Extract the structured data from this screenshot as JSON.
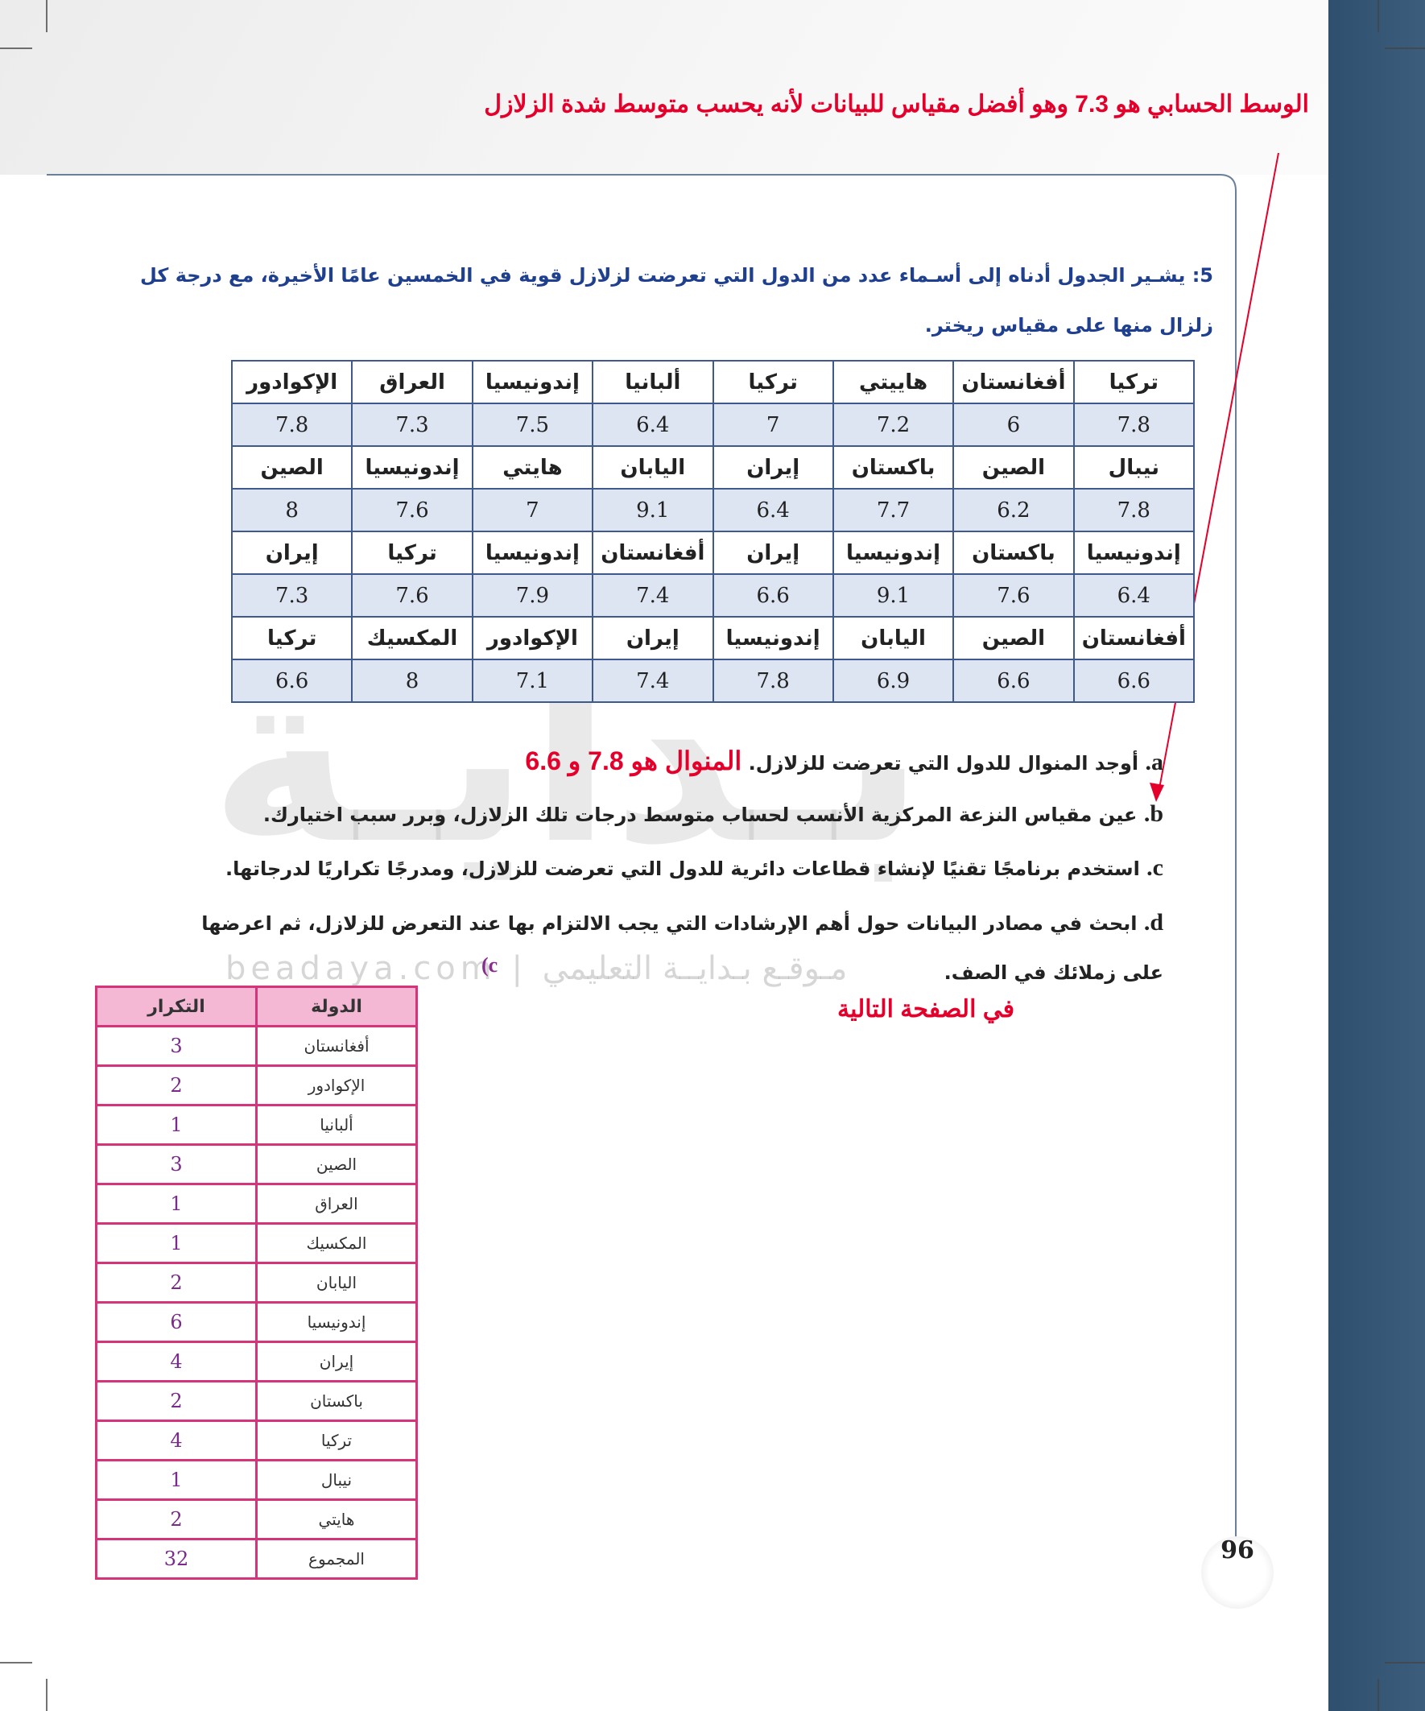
{
  "annotation_top": "الوسط الحسابي هو 7.3 وهو أفضل مقياس للبيانات لأنه يحسب متوسط شدة الزلازل",
  "question": {
    "number": "5:",
    "lines": [
      "يشـير الجدول أدناه إلى أسـماء عدد من الدول التي تعرضت لزلازل قوية في الخمسين عامًا الأخيرة، مع درجة كل",
      "زلزال منها على مقياس ريختر."
    ]
  },
  "table": {
    "rows": [
      [
        "تركيا",
        "أفغانستان",
        "هاييتي",
        "تركيا",
        "ألبانيا",
        "إندونيسيا",
        "العراق",
        "الإكوادور"
      ],
      [
        7.8,
        6,
        7.2,
        7,
        6.4,
        7.5,
        7.3,
        7.8
      ],
      [
        "نيبال",
        "الصين",
        "باكستان",
        "إيران",
        "اليابان",
        "هايتي",
        "إندونيسيا",
        "الصين"
      ],
      [
        7.8,
        6.2,
        7.7,
        6.4,
        9.1,
        7,
        7.6,
        8
      ],
      [
        "إندونيسيا",
        "باكستان",
        "إندونيسيا",
        "إيران",
        "أفغانستان",
        "إندونيسيا",
        "تركيا",
        "إيران"
      ],
      [
        6.4,
        7.6,
        9.1,
        6.6,
        7.4,
        7.9,
        7.6,
        7.3
      ],
      [
        "أفغانستان",
        "الصين",
        "اليابان",
        "إندونيسيا",
        "إيران",
        "الإكوادور",
        "المكسيك",
        "تركيا"
      ],
      [
        6.6,
        6.6,
        6.9,
        7.8,
        7.4,
        7.1,
        8,
        6.6
      ]
    ]
  },
  "items": [
    {
      "letter": "a.",
      "lines": [
        "أوجد المنوال للدول التي تعرضت للزلازل."
      ]
    },
    {
      "letter": "b.",
      "lines": [
        "عين مقياس النزعة المركزية الأنسب لحساب متوسط درجات تلك الزلازل، وبرر سبب اختيارك."
      ]
    },
    {
      "letter": "c.",
      "lines": [
        "استخدم برنامجًا تقنيًا لإنشاء قطاعات دائرية للدول التي تعرضت للزلازل، ومدرجًا تكراريًا لدرجاتها."
      ]
    },
    {
      "letter": "d.",
      "lines": [
        "ابحث في مصادر البيانات حول أهم الإرشادات التي يجب الالتزام بها عند التعرض للزلازل، ثم اعرضها",
        "على زملائك في الصف."
      ]
    }
  ],
  "answer_a": "المنوال هو 7.8 و 6.6",
  "part_c_label": "(c",
  "next_page_note": "في الصفحة التالية",
  "frequency_table": {
    "header": [
      "الدولة",
      "التكرار"
    ],
    "rows": [
      [
        "أفغانستان",
        3
      ],
      [
        "الإكوادور",
        2
      ],
      [
        "ألبانيا",
        1
      ],
      [
        "الصين",
        3
      ],
      [
        "العراق",
        1
      ],
      [
        "المكسيك",
        1
      ],
      [
        "اليابان",
        2
      ],
      [
        "إندونيسيا",
        6
      ],
      [
        "إيران",
        4
      ],
      [
        "باكستان",
        2
      ],
      [
        "تركيا",
        4
      ],
      [
        "نيبال",
        1
      ],
      [
        "هايتي",
        2
      ],
      [
        "المجموع",
        32
      ]
    ]
  },
  "page_number": 96,
  "watermark": {
    "logo": "بـدايـة",
    "caption": "beadaya.com | مـوقـع بـدايــة التعليمي"
  }
}
